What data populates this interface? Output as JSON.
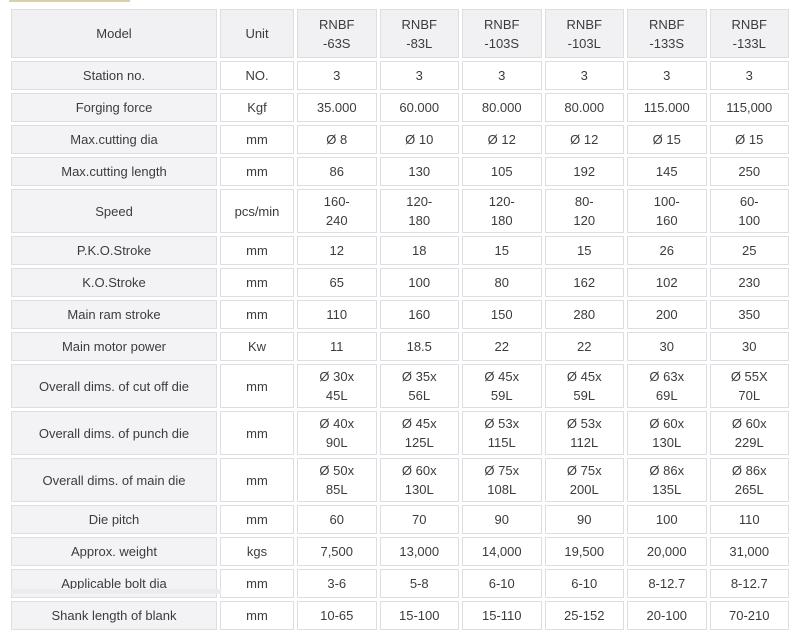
{
  "table": {
    "header": {
      "model_label": "Model",
      "unit_label": "Unit",
      "model_columns": [
        "RNBF\n-63S",
        "RNBF\n-83L",
        "RNBF\n-103S",
        "RNBF\n-103L",
        "RNBF\n-133S",
        "RNBF\n-133L"
      ]
    },
    "rows": [
      {
        "label": "Station no.",
        "unit": "NO.",
        "values": [
          "3",
          "3",
          "3",
          "3",
          "3",
          "3"
        ]
      },
      {
        "label": "Forging force",
        "unit": "Kgf",
        "values": [
          "35.000",
          "60.000",
          "80.000",
          "80.000",
          "115.000",
          "115,000"
        ]
      },
      {
        "label": "Max.cutting dia",
        "unit": "mm",
        "values": [
          "Ø 8",
          "Ø 10",
          "Ø 12",
          "Ø 12",
          "Ø 15",
          "Ø 15"
        ]
      },
      {
        "label": "Max.cutting length",
        "unit": "mm",
        "values": [
          "86",
          "130",
          "105",
          "192",
          "145",
          "250"
        ]
      },
      {
        "label": "Speed",
        "unit": "pcs/min",
        "values": [
          "160-\n240",
          "120-\n180",
          "120-\n180",
          "80-\n120",
          "100-\n160",
          "60-\n100"
        ]
      },
      {
        "label": "P.K.O.Stroke",
        "unit": "mm",
        "values": [
          "12",
          "18",
          "15",
          "15",
          "26",
          "25"
        ]
      },
      {
        "label": "K.O.Stroke",
        "unit": "mm",
        "values": [
          "65",
          "100",
          "80",
          "162",
          "102",
          "230"
        ]
      },
      {
        "label": "Main ram stroke",
        "unit": "mm",
        "values": [
          "110",
          "160",
          "150",
          "280",
          "200",
          "350"
        ]
      },
      {
        "label": "Main motor power",
        "unit": "Kw",
        "values": [
          "11",
          "18.5",
          "22",
          "22",
          "30",
          "30"
        ]
      },
      {
        "label": "Overall dims. of cut off die",
        "unit": "mm",
        "values": [
          "Ø 30x\n45L",
          "Ø 35x\n56L",
          "Ø 45x\n59L",
          "Ø 45x\n59L",
          "Ø 63x\n69L",
          "Ø 55X\n70L"
        ]
      },
      {
        "label": "Overall dims. of punch die",
        "unit": "mm",
        "values": [
          "Ø 40x\n90L",
          "Ø 45x\n125L",
          "Ø 53x\n115L",
          "Ø 53x\n112L",
          "Ø 60x\n130L",
          "Ø 60x\n229L"
        ]
      },
      {
        "label": "Overall dims. of main die",
        "unit": "mm",
        "values": [
          "Ø 50x\n85L",
          "Ø 60x\n130L",
          "Ø 75x\n108L",
          "Ø 75x\n200L",
          "Ø 86x\n135L",
          "Ø 86x\n265L"
        ]
      },
      {
        "label": "Die pitch",
        "unit": "mm",
        "values": [
          "60",
          "70",
          "90",
          "90",
          "100",
          "110"
        ]
      },
      {
        "label": "Approx. weight",
        "unit": "kgs",
        "values": [
          "7,500",
          "13,000",
          "14,000",
          "19,500",
          "20,000",
          "31,000"
        ]
      },
      {
        "label": "Applicable bolt dia",
        "unit": "mm",
        "values": [
          "3-6",
          "5-8",
          "6-10",
          "6-10",
          "8-12.7",
          "8-12.7"
        ]
      },
      {
        "label": "Shank length of blank",
        "unit": "mm",
        "values": [
          "10-65",
          "15-100",
          "15-110",
          "25-152",
          "20-100",
          "70-210"
        ]
      }
    ]
  },
  "colors": {
    "header_bg": "#f1f1f4",
    "label_column_bg": "#f3f3f6",
    "cell_bg": "#ffffff",
    "border": "#dddde2",
    "text": "#3c3c3c",
    "top_artifact_line": "#d8d2a9",
    "bottom_artifact_strip": "#ececef"
  }
}
